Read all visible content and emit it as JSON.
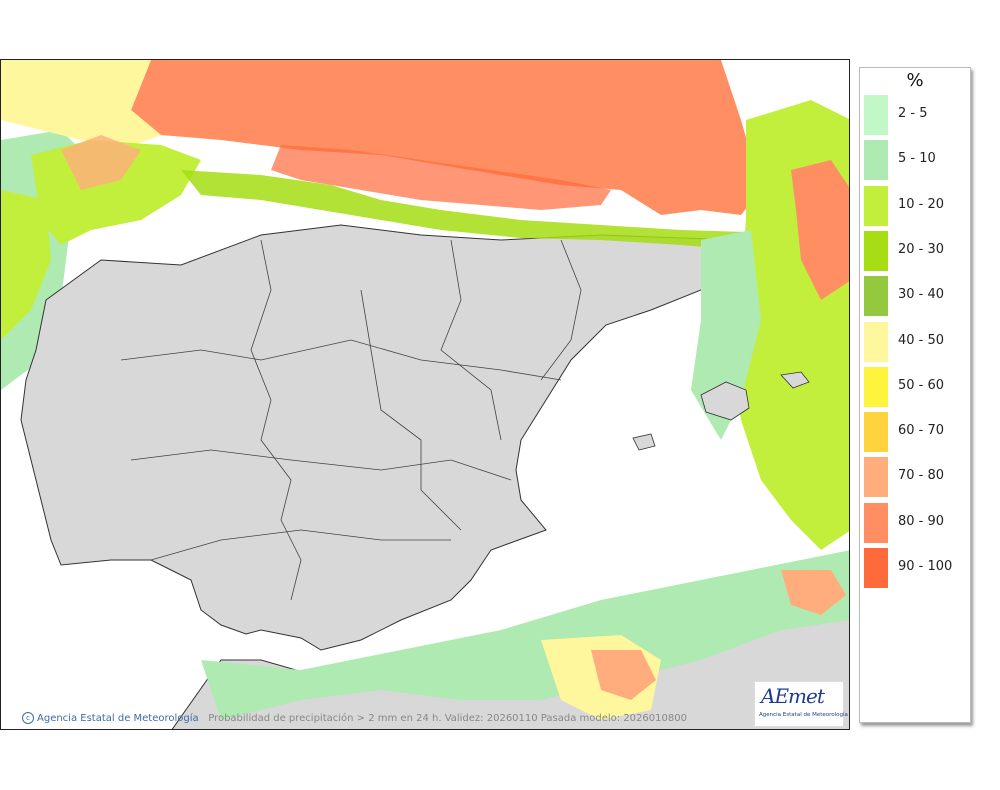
{
  "legend": {
    "unit": "%",
    "items": [
      {
        "label": "2 - 5",
        "color": "#c2f7c7"
      },
      {
        "label": "5 - 10",
        "color": "#aeeab2"
      },
      {
        "label": "10 - 20",
        "color": "#c2ef3c"
      },
      {
        "label": "20 - 30",
        "color": "#a6dd14"
      },
      {
        "label": "30 - 40",
        "color": "#93c83f"
      },
      {
        "label": "40 - 50",
        "color": "#fff79e"
      },
      {
        "label": "50 - 60",
        "color": "#fff43d"
      },
      {
        "label": "60 - 70",
        "color": "#ffd33e"
      },
      {
        "label": "70 - 80",
        "color": "#ffad7d"
      },
      {
        "label": "80 - 90",
        "color": "#ff8f63"
      },
      {
        "label": "90 - 100",
        "color": "#ff6a3a"
      }
    ]
  },
  "footer": {
    "agency": "Agencia Estatal de Meteorología",
    "caption": "Probabilidad de precipitación > 2 mm en 24 h. Validez: 20260110 Pasada modelo: 2026010800"
  },
  "logo": {
    "word": "AEmet",
    "subtitle": "Agencia Estatal de Meteorología"
  },
  "colors": {
    "land": "#dcdcdc",
    "sea": "#ffffff",
    "border": "#333333"
  }
}
